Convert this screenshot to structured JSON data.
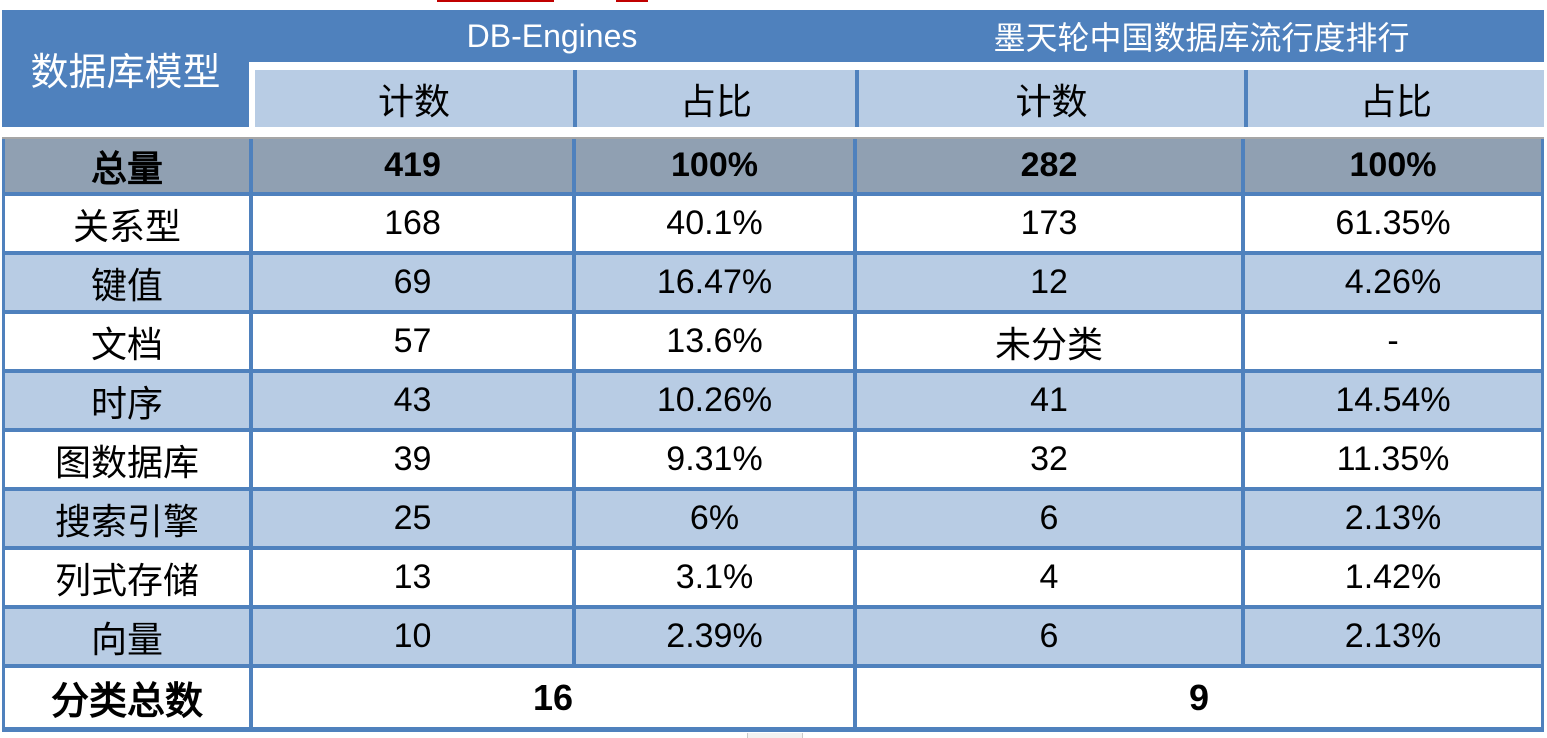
{
  "colors": {
    "header_blue": "#4F81BD",
    "light_blue_row": "#B8CCE4",
    "gray_total_row": "#90A0B2",
    "grid_line_blue": "#4F81BD",
    "header_divider_gray": "#A6A6A6",
    "red_fragment": "#C00000"
  },
  "chart_data": {
    "type": "table",
    "corner_header": "数据库模型",
    "column_groups": [
      {
        "label": "DB-Engines",
        "columns": [
          "计数",
          "占比"
        ]
      },
      {
        "label": "墨天轮中国数据库流行度排行",
        "columns": [
          "计数",
          "占比"
        ]
      }
    ],
    "rows": [
      {
        "label": "总量",
        "db_count": "419",
        "db_pct": "100%",
        "mt_count": "282",
        "mt_pct": "100%",
        "emphasis": "bold, gray background"
      },
      {
        "label": "关系型",
        "db_count": "168",
        "db_pct": "40.1%",
        "mt_count": "173",
        "mt_pct": "61.35%"
      },
      {
        "label": "键值",
        "db_count": "69",
        "db_pct": "16.47%",
        "mt_count": "12",
        "mt_pct": "4.26%"
      },
      {
        "label": "文档",
        "db_count": "57",
        "db_pct": "13.6%",
        "mt_count": "未分类",
        "mt_pct": "-"
      },
      {
        "label": "时序",
        "db_count": "43",
        "db_pct": "10.26%",
        "mt_count": "41",
        "mt_pct": "14.54%"
      },
      {
        "label": "图数据库",
        "db_count": "39",
        "db_pct": "9.31%",
        "mt_count": "32",
        "mt_pct": "11.35%"
      },
      {
        "label": "搜索引擎",
        "db_count": "25",
        "db_pct": "6%",
        "mt_count": "6",
        "mt_pct": "2.13%"
      },
      {
        "label": "列式存储",
        "db_count": "13",
        "db_pct": "3.1%",
        "mt_count": "4",
        "mt_pct": "1.42%"
      },
      {
        "label": "向量",
        "db_count": "10",
        "db_pct": "2.39%",
        "mt_count": "6",
        "mt_pct": "2.13%"
      }
    ],
    "footer": {
      "label": "分类总数",
      "db_total": "16",
      "mt_total": "9"
    }
  }
}
